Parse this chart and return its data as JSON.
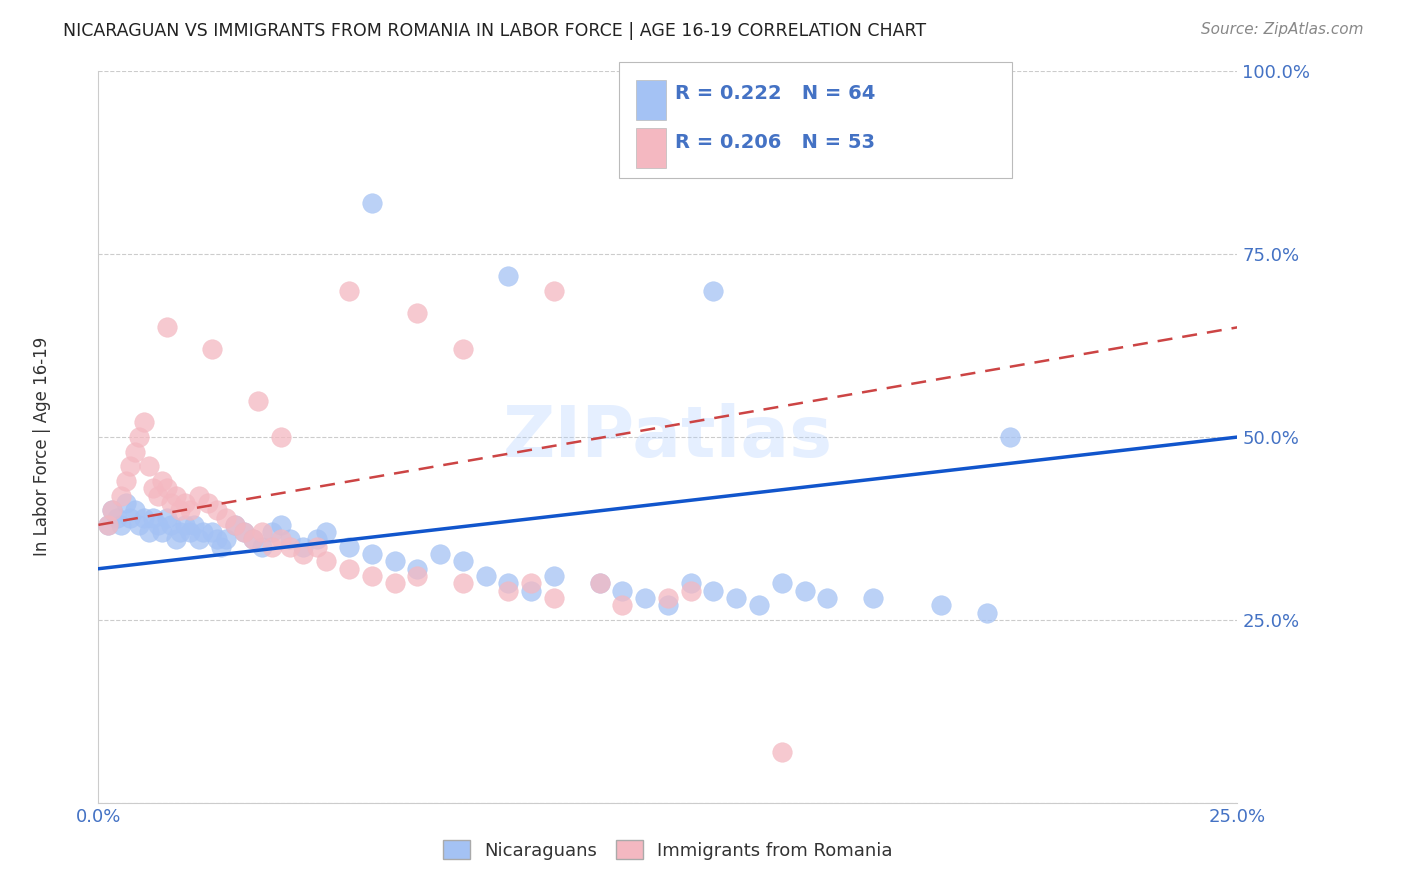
{
  "title": "NICARAGUAN VS IMMIGRANTS FROM ROMANIA IN LABOR FORCE | AGE 16-19 CORRELATION CHART",
  "source": "Source: ZipAtlas.com",
  "ylabel": "In Labor Force | Age 16-19",
  "blue_R": "R = 0.222",
  "blue_N": "N = 64",
  "pink_R": "R = 0.206",
  "pink_N": "N = 53",
  "blue_color": "#a4c2f4",
  "pink_color": "#f4b8c1",
  "blue_line_color": "#1155cc",
  "pink_line_color": "#cc4444",
  "axis_label_color": "#4472c4",
  "grid_color": "#cccccc",
  "title_color": "#222222",
  "watermark": "ZIPatlas",
  "legend_label_blue": "Nicaraguans",
  "legend_label_pink": "Immigrants from Romania",
  "blue_scatter_x": [
    0.002,
    0.003,
    0.004,
    0.005,
    0.006,
    0.007,
    0.008,
    0.009,
    0.01,
    0.011,
    0.012,
    0.013,
    0.014,
    0.015,
    0.016,
    0.017,
    0.018,
    0.019,
    0.02,
    0.021,
    0.022,
    0.023,
    0.025,
    0.026,
    0.027,
    0.028,
    0.03,
    0.032,
    0.034,
    0.036,
    0.038,
    0.04,
    0.042,
    0.045,
    0.048,
    0.05,
    0.055,
    0.06,
    0.065,
    0.07,
    0.075,
    0.08,
    0.085,
    0.09,
    0.095,
    0.1,
    0.11,
    0.115,
    0.12,
    0.125,
    0.13,
    0.135,
    0.14,
    0.145,
    0.15,
    0.155,
    0.16,
    0.17,
    0.185,
    0.195,
    0.06,
    0.09,
    0.135,
    0.2
  ],
  "blue_scatter_y": [
    0.38,
    0.4,
    0.39,
    0.38,
    0.41,
    0.39,
    0.4,
    0.38,
    0.39,
    0.37,
    0.39,
    0.38,
    0.37,
    0.39,
    0.38,
    0.36,
    0.37,
    0.38,
    0.37,
    0.38,
    0.36,
    0.37,
    0.37,
    0.36,
    0.35,
    0.36,
    0.38,
    0.37,
    0.36,
    0.35,
    0.37,
    0.38,
    0.36,
    0.35,
    0.36,
    0.37,
    0.35,
    0.34,
    0.33,
    0.32,
    0.34,
    0.33,
    0.31,
    0.3,
    0.29,
    0.31,
    0.3,
    0.29,
    0.28,
    0.27,
    0.3,
    0.29,
    0.28,
    0.27,
    0.3,
    0.29,
    0.28,
    0.28,
    0.27,
    0.26,
    0.82,
    0.72,
    0.7,
    0.5
  ],
  "pink_scatter_x": [
    0.002,
    0.003,
    0.005,
    0.006,
    0.007,
    0.008,
    0.009,
    0.01,
    0.011,
    0.012,
    0.013,
    0.014,
    0.015,
    0.016,
    0.017,
    0.018,
    0.019,
    0.02,
    0.022,
    0.024,
    0.026,
    0.028,
    0.03,
    0.032,
    0.034,
    0.036,
    0.038,
    0.04,
    0.042,
    0.045,
    0.048,
    0.05,
    0.055,
    0.06,
    0.065,
    0.07,
    0.08,
    0.09,
    0.095,
    0.1,
    0.11,
    0.115,
    0.125,
    0.13,
    0.015,
    0.025,
    0.035,
    0.04,
    0.055,
    0.07,
    0.08,
    0.1,
    0.15
  ],
  "pink_scatter_y": [
    0.38,
    0.4,
    0.42,
    0.44,
    0.46,
    0.48,
    0.5,
    0.52,
    0.46,
    0.43,
    0.42,
    0.44,
    0.43,
    0.41,
    0.42,
    0.4,
    0.41,
    0.4,
    0.42,
    0.41,
    0.4,
    0.39,
    0.38,
    0.37,
    0.36,
    0.37,
    0.35,
    0.36,
    0.35,
    0.34,
    0.35,
    0.33,
    0.32,
    0.31,
    0.3,
    0.31,
    0.3,
    0.29,
    0.3,
    0.28,
    0.3,
    0.27,
    0.28,
    0.29,
    0.65,
    0.62,
    0.55,
    0.5,
    0.7,
    0.67,
    0.62,
    0.7,
    0.07
  ],
  "blue_line_x": [
    0.0,
    0.25
  ],
  "blue_line_y": [
    0.32,
    0.5
  ],
  "pink_line_x": [
    0.0,
    0.25
  ],
  "pink_line_y": [
    0.38,
    0.65
  ],
  "xlim": [
    0.0,
    0.25
  ],
  "ylim": [
    0.0,
    1.0
  ],
  "yticks": [
    0.0,
    0.25,
    0.5,
    0.75,
    1.0
  ],
  "ytick_labels_right": [
    "",
    "25.0%",
    "50.0%",
    "75.0%",
    "100.0%"
  ],
  "xticks": [
    0.0,
    0.05,
    0.1,
    0.15,
    0.2,
    0.25
  ],
  "xtick_labels": [
    "0.0%",
    "",
    "",
    "",
    "",
    "25.0%"
  ]
}
